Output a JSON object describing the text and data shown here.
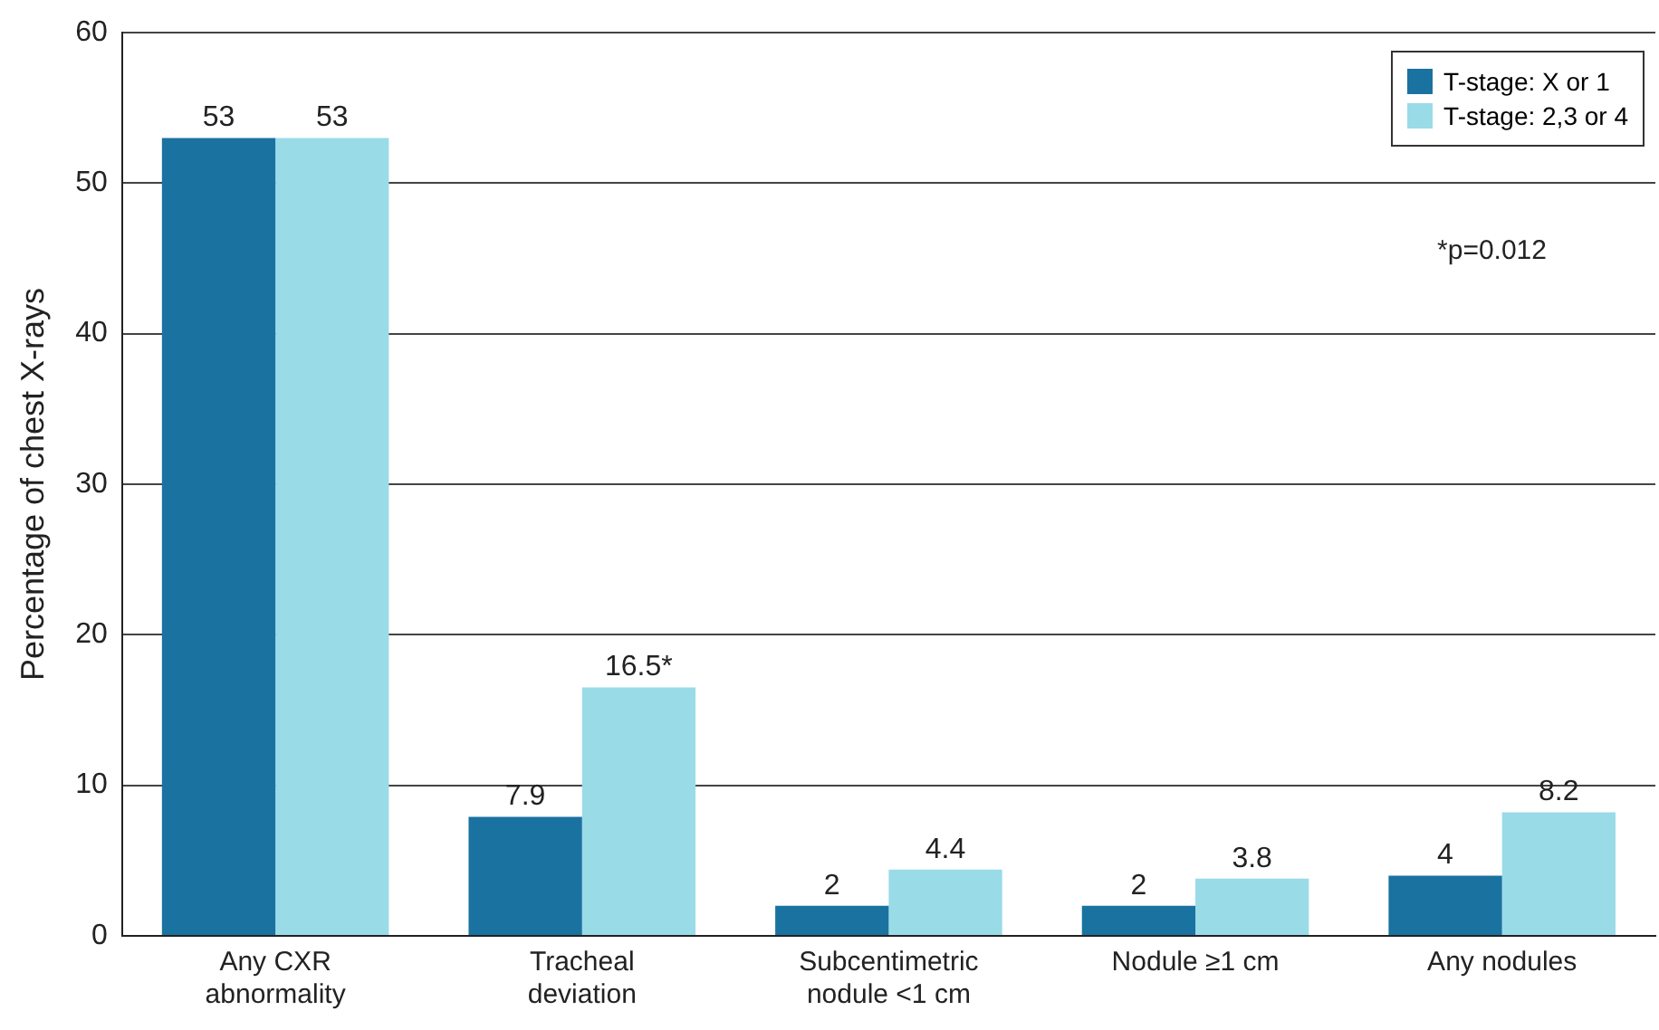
{
  "chart_data": {
    "type": "bar",
    "ylabel": "Percentage of chest X-rays",
    "categories": [
      "Any CXR abnormality",
      "Tracheal deviation",
      "Subcentimetric nodule <1 cm",
      "Nodule ≥1 cm",
      "Any nodules"
    ],
    "series": [
      {
        "name": "T-stage: X or 1",
        "color": "#1a72a0",
        "values": [
          53,
          7.9,
          2,
          2,
          4
        ],
        "value_labels": [
          "53",
          "7.9",
          "2",
          "2",
          "4"
        ]
      },
      {
        "name": "T-stage: 2,3 or 4",
        "color": "#9adbe8",
        "values": [
          53,
          16.5,
          4.4,
          3.8,
          8.2
        ],
        "value_labels": [
          "53",
          "16.5*",
          "4.4",
          "3.8",
          "8.2"
        ]
      }
    ],
    "ylim": [
      0,
      60
    ],
    "yticks": [
      0,
      10,
      20,
      30,
      40,
      50,
      60
    ],
    "grid": "y",
    "legend": "top right",
    "annotations": [
      "*p=0.012"
    ]
  }
}
